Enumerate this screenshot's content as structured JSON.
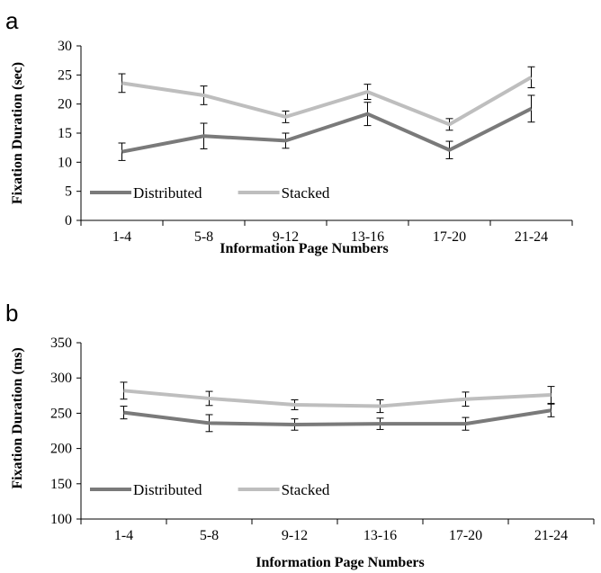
{
  "chart_data": [
    {
      "panel": "a",
      "type": "line",
      "categories": [
        "1-4",
        "5-8",
        "9-12",
        "13-16",
        "17-20",
        "21-24"
      ],
      "xlabel": "Information Page Numbers",
      "ylabel": "Fixation Duration (sec)",
      "ylim": [
        0,
        30
      ],
      "yticks": [
        0,
        5,
        10,
        15,
        20,
        25,
        30
      ],
      "grid": false,
      "legend_position": "bottom-left",
      "series": [
        {
          "name": "Distributed",
          "color": "#7a7a7a",
          "values": [
            11.8,
            14.5,
            13.7,
            18.3,
            12.1,
            19.2
          ],
          "error": [
            1.5,
            2.2,
            1.3,
            2.0,
            1.5,
            2.3
          ]
        },
        {
          "name": "Stacked",
          "color": "#bebebe",
          "values": [
            23.6,
            21.5,
            17.8,
            22.1,
            16.5,
            24.6
          ],
          "error": [
            1.6,
            1.6,
            1.0,
            1.3,
            1.0,
            1.8
          ]
        }
      ]
    },
    {
      "panel": "b",
      "type": "line",
      "categories": [
        "1-4",
        "5-8",
        "9-12",
        "13-16",
        "17-20",
        "21-24"
      ],
      "xlabel": "Information Page Numbers",
      "ylabel": "Fixation Duration (ms)",
      "ylim": [
        100,
        350
      ],
      "yticks": [
        100,
        150,
        200,
        250,
        300,
        350
      ],
      "grid": false,
      "legend_position": "bottom-left",
      "series": [
        {
          "name": "Distributed",
          "color": "#7a7a7a",
          "values": [
            251,
            236,
            234,
            235,
            235,
            254
          ],
          "error": [
            9,
            12,
            8,
            8,
            9,
            9
          ]
        },
        {
          "name": "Stacked",
          "color": "#bebebe",
          "values": [
            282,
            271,
            262,
            260,
            270,
            276
          ],
          "error": [
            12,
            10,
            7,
            9,
            10,
            12
          ]
        }
      ]
    }
  ]
}
